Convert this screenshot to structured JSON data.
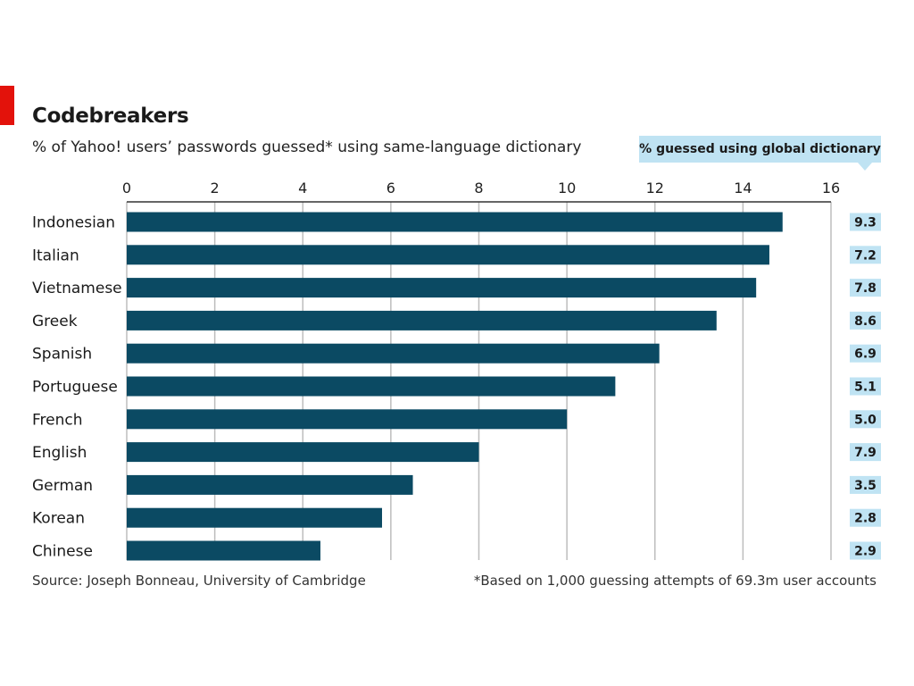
{
  "colors": {
    "brand_red": "#e3120b",
    "bar": "#0b4a63",
    "highlight": "#bfe3f3",
    "grid": "#bdbdbd",
    "axis": "#333333"
  },
  "header": {
    "title": "Codebreakers",
    "subtitle": "% of Yahoo! users’ passwords guessed* using same-language dictionary",
    "global_label": "% guessed using global dictionary"
  },
  "footer": {
    "source": "Source: Joseph Bonneau, University of Cambridge",
    "footnote": "*Based on 1,000 guessing attempts of 69.3m user accounts"
  },
  "chart_data": {
    "type": "bar",
    "orientation": "horizontal",
    "title": "Codebreakers",
    "subtitle": "% of Yahoo! users’ passwords guessed* using same-language dictionary",
    "xlim": [
      0,
      16
    ],
    "ticks": [
      0,
      2,
      4,
      6,
      8,
      10,
      12,
      14,
      16
    ],
    "grid": true,
    "categories": [
      "Indonesian",
      "Italian",
      "Vietnamese",
      "Greek",
      "Spanish",
      "Portuguese",
      "French",
      "English",
      "German",
      "Korean",
      "Chinese"
    ],
    "values": [
      14.9,
      14.6,
      14.3,
      13.4,
      12.1,
      11.1,
      10.0,
      8.0,
      6.5,
      5.8,
      4.4
    ],
    "global_dictionary_values": [
      "9.3",
      "7.2",
      "7.8",
      "8.6",
      "6.9",
      "5.1",
      "5.0",
      "7.9",
      "3.5",
      "2.8",
      "2.9"
    ],
    "global_dictionary_label": "% guessed using global dictionary"
  }
}
